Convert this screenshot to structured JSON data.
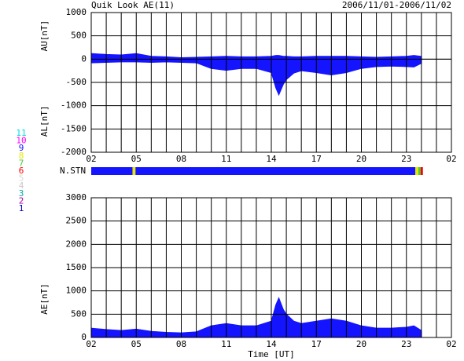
{
  "header": {
    "title": "Quik Look AE(11)",
    "period": "2006/11/01-2006/11/02"
  },
  "chart_data": [
    {
      "type": "band",
      "ylabel_upper": "AU[nT]",
      "ylabel_lower": "AL[nT]",
      "color": "#1414ff",
      "xlim": [
        0,
        24
      ],
      "xticks": [
        {
          "value": 0,
          "label": "02"
        },
        {
          "value": 3,
          "label": "05"
        },
        {
          "value": 6,
          "label": "08"
        },
        {
          "value": 9,
          "label": "11"
        },
        {
          "value": 12,
          "label": "14"
        },
        {
          "value": 15,
          "label": "17"
        },
        {
          "value": 18,
          "label": "20"
        },
        {
          "value": 21,
          "label": "23"
        },
        {
          "value": 24,
          "label": "02"
        }
      ],
      "xgrid": [
        0,
        1,
        2,
        3,
        4,
        5,
        6,
        7,
        8,
        9,
        10,
        11,
        12,
        13,
        14,
        15,
        16,
        17,
        18,
        19,
        20,
        21,
        22,
        23,
        24
      ],
      "ylim": [
        -2000,
        1000
      ],
      "yticks": [
        -2000,
        -1500,
        -1000,
        -500,
        0,
        500,
        1000
      ],
      "x": [
        0,
        1,
        2,
        3,
        4,
        5,
        6,
        7,
        8,
        9,
        10,
        11,
        12,
        12.3,
        12.5,
        12.8,
        13,
        13.5,
        14,
        15,
        16,
        17,
        18,
        19,
        20,
        21,
        21.5,
        22
      ],
      "series": [
        {
          "values": [
            120,
            100,
            90,
            120,
            60,
            50,
            30,
            40,
            50,
            60,
            50,
            50,
            60,
            80,
            80,
            60,
            60,
            50,
            50,
            60,
            60,
            60,
            50,
            40,
            50,
            60,
            80,
            60
          ]
        },
        {
          "values": [
            -80,
            -70,
            -60,
            -60,
            -70,
            -60,
            -70,
            -80,
            -200,
            -240,
            -200,
            -200,
            -290,
            -620,
            -770,
            -540,
            -440,
            -300,
            -250,
            -290,
            -340,
            -290,
            -200,
            -160,
            -150,
            -160,
            -170,
            -90
          ]
        }
      ]
    },
    {
      "type": "area",
      "ylabel": "AE[nT]",
      "xlabel": "Time [UT]",
      "color": "#1414ff",
      "xlim": [
        0,
        24
      ],
      "xticks": [
        {
          "value": 0,
          "label": "02"
        },
        {
          "value": 3,
          "label": "05"
        },
        {
          "value": 6,
          "label": "08"
        },
        {
          "value": 9,
          "label": "11"
        },
        {
          "value": 12,
          "label": "14"
        },
        {
          "value": 15,
          "label": "17"
        },
        {
          "value": 18,
          "label": "20"
        },
        {
          "value": 21,
          "label": "23"
        },
        {
          "value": 24,
          "label": "02"
        }
      ],
      "xgrid": [
        0,
        1,
        2,
        3,
        4,
        5,
        6,
        7,
        8,
        9,
        10,
        11,
        12,
        13,
        14,
        15,
        16,
        17,
        18,
        19,
        20,
        21,
        22,
        23,
        24
      ],
      "ylim": [
        0,
        3000
      ],
      "yticks": [
        0,
        500,
        1000,
        1500,
        2000,
        2500,
        3000
      ],
      "x": [
        0,
        1,
        2,
        3,
        4,
        5,
        6,
        7,
        8,
        9,
        10,
        11,
        12,
        12.3,
        12.5,
        12.8,
        13,
        13.5,
        14,
        15,
        16,
        17,
        18,
        19,
        20,
        21,
        21.5,
        22
      ],
      "series": [
        {
          "values": [
            200,
            170,
            150,
            180,
            130,
            110,
            100,
            120,
            250,
            300,
            250,
            250,
            350,
            700,
            850,
            600,
            500,
            350,
            300,
            350,
            400,
            350,
            250,
            200,
            200,
            220,
            250,
            150
          ]
        }
      ]
    }
  ],
  "stations": {
    "label": "N.STN",
    "legend": [
      {
        "label": "11",
        "color": "#00dddd"
      },
      {
        "label": "10",
        "color": "#ff00ff"
      },
      {
        "label": "9",
        "color": "#1414ff"
      },
      {
        "label": "8",
        "color": "#e8e800"
      },
      {
        "label": "7",
        "color": "#44cc44"
      },
      {
        "label": "6",
        "color": "#ff0000"
      },
      {
        "label": "5",
        "color": "#d8d8d8"
      },
      {
        "label": "4",
        "color": "#c8c8c8"
      },
      {
        "label": "3",
        "color": "#00aaaa"
      },
      {
        "label": "2",
        "color": "#aa00aa"
      },
      {
        "label": "1",
        "color": "#0000cc"
      }
    ],
    "segments": [
      {
        "start": 0,
        "end": 2.75,
        "color": "#1414ff"
      },
      {
        "start": 2.75,
        "end": 2.95,
        "color": "#e8e800"
      },
      {
        "start": 2.95,
        "end": 21.6,
        "color": "#1414ff"
      },
      {
        "start": 21.6,
        "end": 21.8,
        "color": "#e8e800"
      },
      {
        "start": 21.8,
        "end": 21.95,
        "color": "#44cc44"
      },
      {
        "start": 21.95,
        "end": 22.1,
        "color": "#ff0000"
      }
    ]
  }
}
